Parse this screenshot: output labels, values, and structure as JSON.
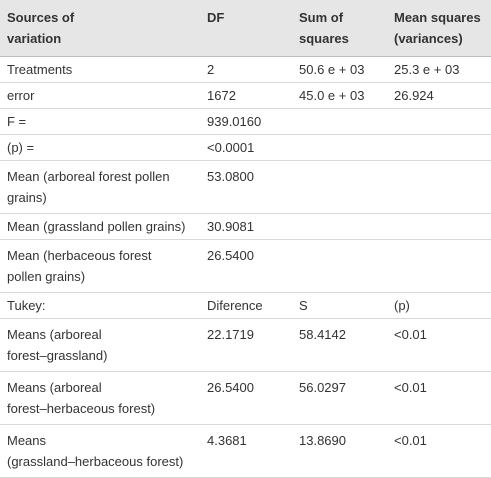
{
  "table": {
    "header": [
      [
        "Sources of",
        "variation"
      ],
      "DF",
      [
        "Sum of",
        "squares"
      ],
      [
        "Mean squares",
        "(variances)"
      ]
    ],
    "rows": [
      [
        "Treatments",
        "2",
        "50.6 e + 03",
        "25.3 e + 03"
      ],
      [
        "error",
        "1672",
        "45.0 e + 03",
        "26.924"
      ],
      [
        "F =",
        "939.0160",
        "",
        ""
      ],
      [
        "(p) =",
        "<0.0001",
        "",
        ""
      ],
      [
        [
          "Mean (arboreal forest pollen",
          "grains)"
        ],
        "53.0800",
        "",
        ""
      ],
      [
        "Mean (grassland pollen grains)",
        "30.9081",
        "",
        ""
      ],
      [
        [
          "Mean (herbaceous forest",
          "pollen grains)"
        ],
        "26.5400",
        "",
        ""
      ],
      [
        "Tukey:",
        "Diference",
        "S",
        "(p)"
      ],
      [
        [
          "Means (arboreal",
          "forest–grassland)"
        ],
        "22.1719",
        "58.4142",
        "<0.01"
      ],
      [
        [
          "Means (arboreal",
          "forest–herbaceous forest)"
        ],
        "26.5400",
        "56.0297",
        "<0.01"
      ],
      [
        [
          "Means",
          "(grassland–herbaceous forest)"
        ],
        "4.3681",
        "13.8690",
        "<0.01"
      ]
    ]
  }
}
